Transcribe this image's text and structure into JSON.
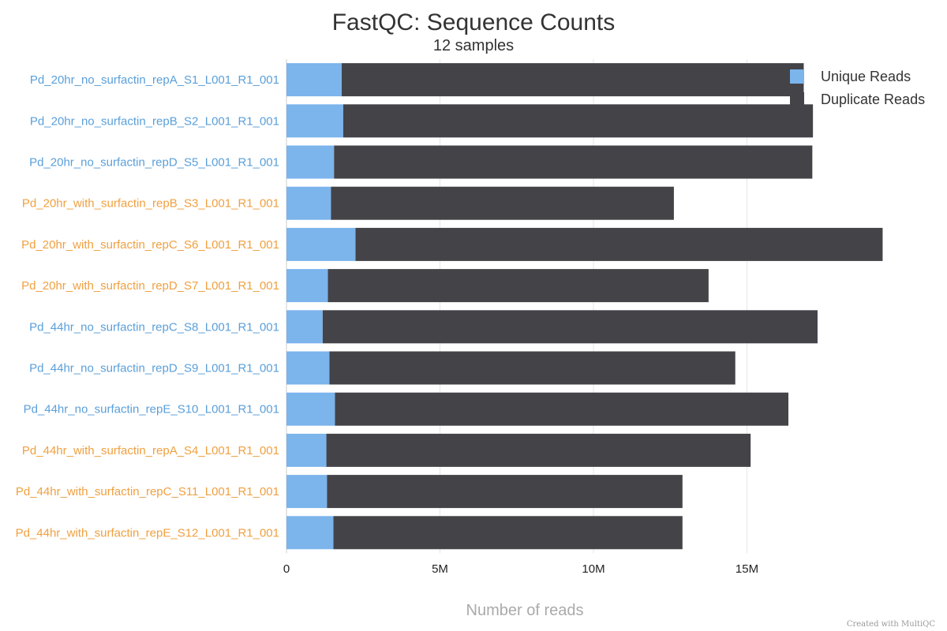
{
  "chart_data": {
    "type": "bar",
    "orientation": "horizontal",
    "stacked": true,
    "title": "FastQC: Sequence Counts",
    "subtitle": "12 samples",
    "xlabel": "Number of reads",
    "ylabel": "",
    "xlim": [
      0,
      20000000
    ],
    "x_ticks": [
      {
        "value": 0,
        "label": "0"
      },
      {
        "value": 5000000,
        "label": "5M"
      },
      {
        "value": 10000000,
        "label": "10M"
      },
      {
        "value": 15000000,
        "label": "15M"
      }
    ],
    "grid": true,
    "legend_position": "top-right",
    "categories": [
      "Pd_20hr_no_surfactin_repA_S1_L001_R1_001",
      "Pd_20hr_no_surfactin_repB_S2_L001_R1_001",
      "Pd_20hr_no_surfactin_repD_S5_L001_R1_001",
      "Pd_20hr_with_surfactin_repB_S3_L001_R1_001",
      "Pd_20hr_with_surfactin_repC_S6_L001_R1_001",
      "Pd_20hr_with_surfactin_repD_S7_L001_R1_001",
      "Pd_44hr_no_surfactin_repC_S8_L001_R1_001",
      "Pd_44hr_no_surfactin_repD_S9_L001_R1_001",
      "Pd_44hr_no_surfactin_repE_S10_L001_R1_001",
      "Pd_44hr_with_surfactin_repA_S4_L001_R1_001",
      "Pd_44hr_with_surfactin_repC_S11_L001_R1_001",
      "Pd_44hr_with_surfactin_repE_S12_L001_R1_001"
    ],
    "category_colors": [
      "#5a9fd9",
      "#5a9fd9",
      "#5a9fd9",
      "#f0a040",
      "#f0a040",
      "#f0a040",
      "#5a9fd9",
      "#5a9fd9",
      "#5a9fd9",
      "#f0a040",
      "#f0a040",
      "#f0a040"
    ],
    "series": [
      {
        "name": "Unique Reads",
        "color": "#7cb4ec",
        "values": [
          1800000,
          1850000,
          1550000,
          1450000,
          2250000,
          1350000,
          1180000,
          1400000,
          1580000,
          1300000,
          1320000,
          1530000
        ]
      },
      {
        "name": "Duplicate Reads",
        "color": "#434348",
        "values": [
          15050000,
          15300000,
          15580000,
          11170000,
          17170000,
          12400000,
          16120000,
          13220000,
          14770000,
          13820000,
          11580000,
          11370000
        ]
      }
    ]
  },
  "credit": "Created with MultiQC"
}
